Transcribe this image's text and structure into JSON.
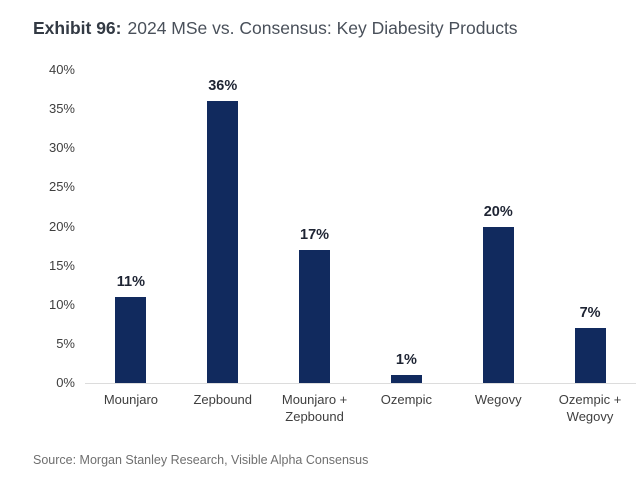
{
  "header": {
    "exhibit_label": "Exhibit 96:",
    "title": "2024 MSe vs. Consensus: Key Diabesity Products"
  },
  "chart_data": {
    "type": "bar",
    "title": "2024 MSe vs. Consensus: Key Diabesity Products",
    "categories": [
      "Mounjaro",
      "Zepbound",
      "Mounjaro + Zepbound",
      "Ozempic",
      "Wegovy",
      "Ozempic + Wegovy"
    ],
    "values": [
      11,
      36,
      17,
      1,
      20,
      7
    ],
    "value_labels": [
      "11%",
      "36%",
      "17%",
      "1%",
      "20%",
      "7%"
    ],
    "ylim": [
      0,
      40
    ],
    "ytick_labels": [
      "40%",
      "35%",
      "30%",
      "25%",
      "20%",
      "15%",
      "10%",
      "5%",
      "0%"
    ],
    "grid": false,
    "legend": "none",
    "bar_color": "#112A5E",
    "axis_line_color": "#DCDCDC"
  },
  "footer": {
    "source": "Source: Morgan Stanley Research, Visible Alpha Consensus"
  }
}
